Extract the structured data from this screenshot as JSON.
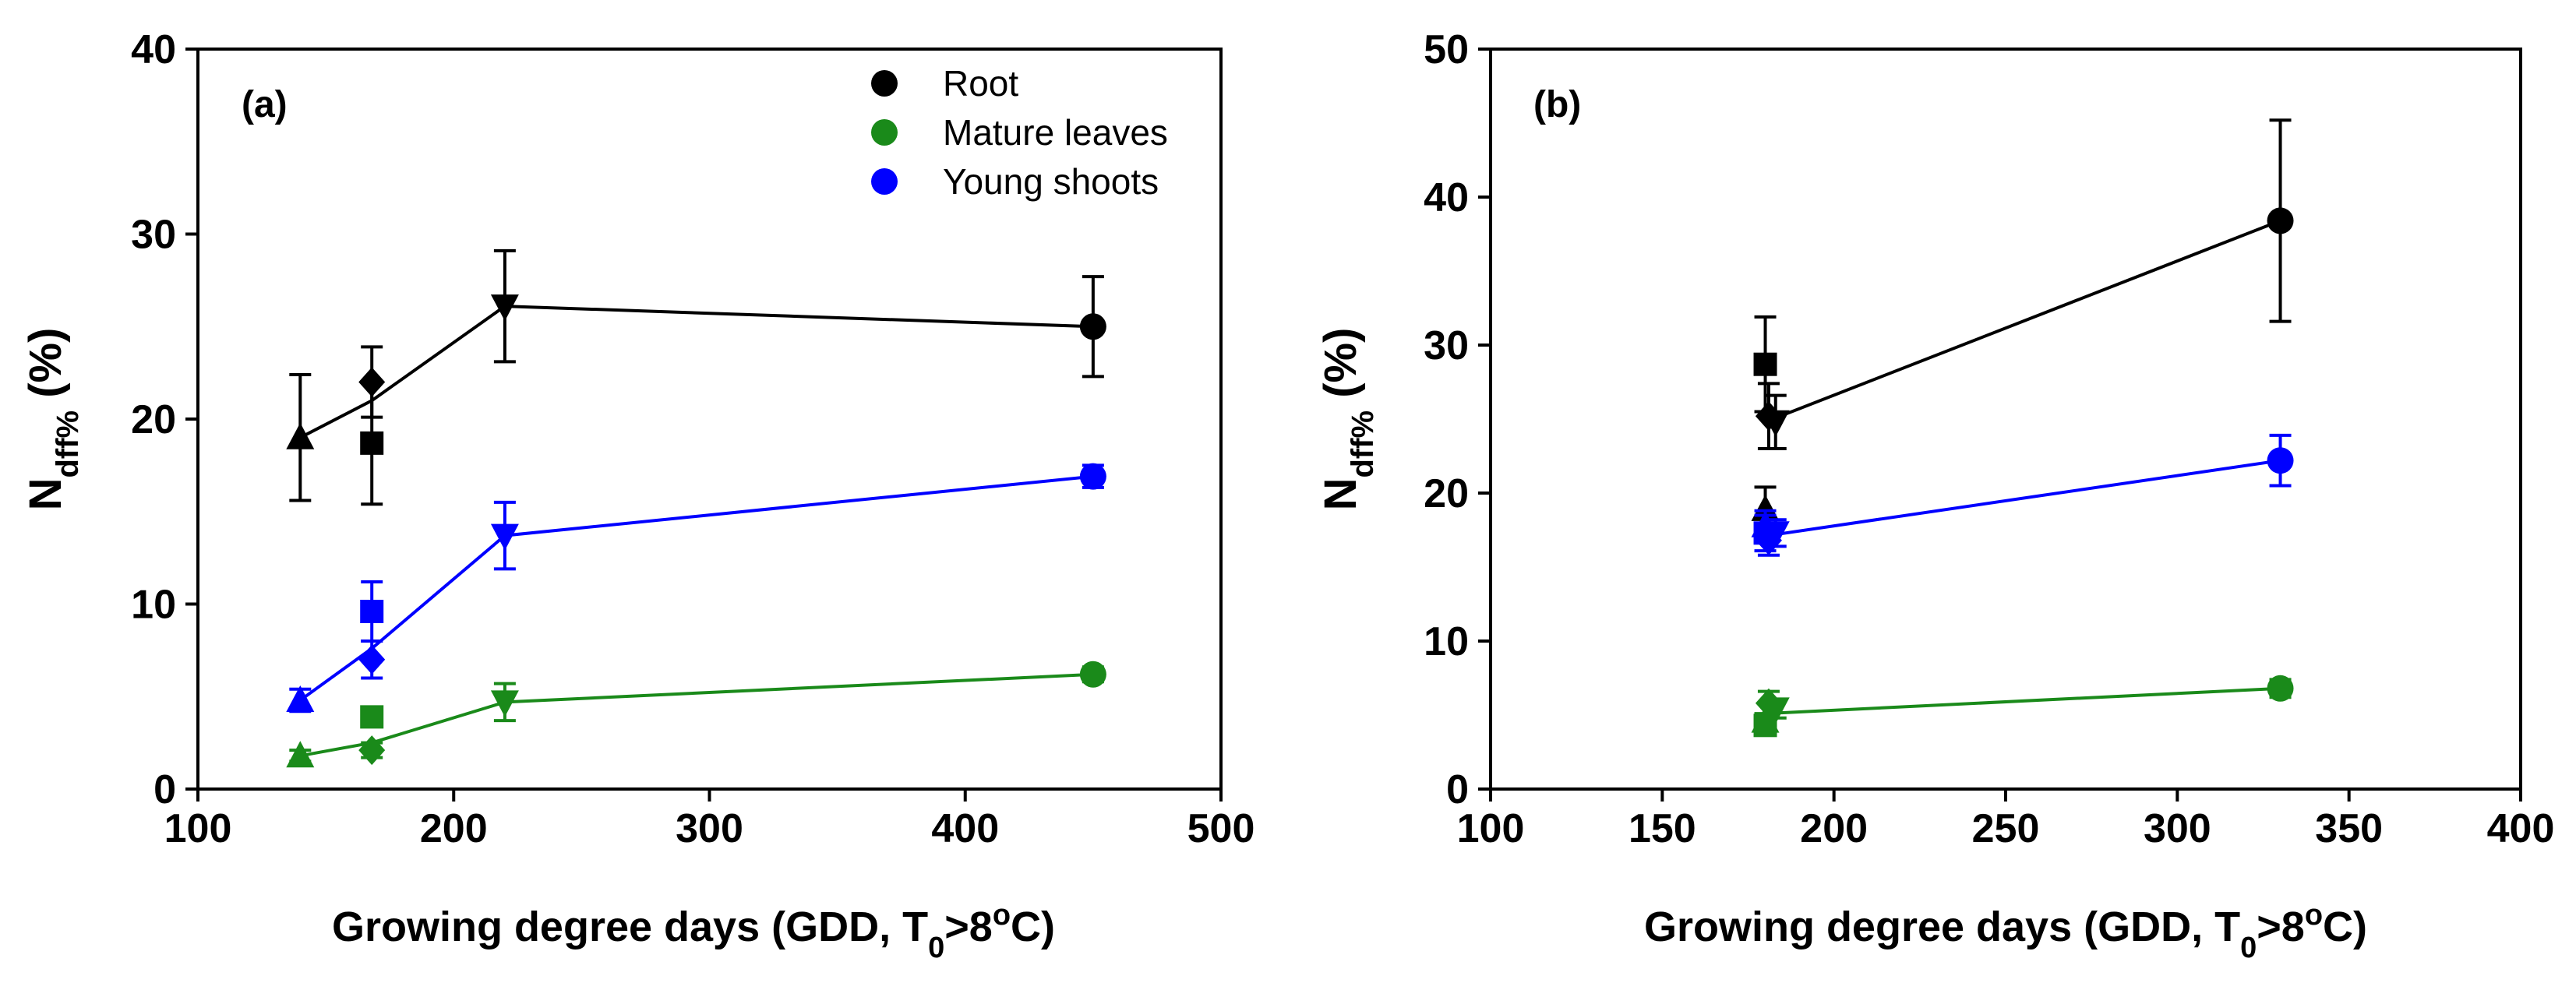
{
  "figure": {
    "x_axis_label": {
      "main": "Growing degree days (GDD, T",
      "sub": "0",
      "after": ">8",
      "sup": "o",
      "tail": "C)"
    },
    "y_axis_label": {
      "main": "N",
      "sub": "dff%",
      "tail": " (%)"
    }
  },
  "legend": {
    "items": [
      {
        "label": "Root",
        "color": "#000000"
      },
      {
        "label": "Mature leaves",
        "color": "#1a8a1a"
      },
      {
        "label": "Young shoots",
        "color": "#0000ff"
      }
    ]
  },
  "chart_data": [
    {
      "type": "scatter",
      "panel_label": "(a)",
      "xlim": [
        100,
        500
      ],
      "ylim": [
        0,
        40
      ],
      "xticks": [
        100,
        200,
        300,
        400,
        500
      ],
      "yticks": [
        0,
        10,
        20,
        30,
        40
      ],
      "series": [
        {
          "name": "Root",
          "color": "#000000",
          "line": [
            [
              140,
              19.0
            ],
            [
              168,
              21.0
            ],
            [
              220,
              26.1
            ],
            [
              450,
              25.0
            ]
          ],
          "points": [
            {
              "x": 140,
              "y": 19.0,
              "err": 3.4,
              "marker": "triangle-up"
            },
            {
              "x": 168,
              "y": 22.0,
              "err": 1.9,
              "marker": "diamond"
            },
            {
              "x": 168,
              "y": 18.7,
              "err": 3.3,
              "marker": "square"
            },
            {
              "x": 220,
              "y": 26.1,
              "err": 3.0,
              "marker": "triangle-down"
            },
            {
              "x": 450,
              "y": 25.0,
              "err": 2.7,
              "marker": "circle"
            }
          ]
        },
        {
          "name": "Mature leaves",
          "color": "#1a8a1a",
          "line": [
            [
              140,
              1.8
            ],
            [
              168,
              2.5
            ],
            [
              220,
              4.7
            ],
            [
              450,
              6.2
            ]
          ],
          "points": [
            {
              "x": 140,
              "y": 1.8,
              "err": 0.3,
              "marker": "triangle-up"
            },
            {
              "x": 168,
              "y": 2.1,
              "err": 0.4,
              "marker": "diamond"
            },
            {
              "x": 168,
              "y": 3.9,
              "err": 0.5,
              "marker": "square"
            },
            {
              "x": 220,
              "y": 4.7,
              "err": 1.0,
              "marker": "triangle-down"
            },
            {
              "x": 450,
              "y": 6.2,
              "err": 0.4,
              "marker": "circle"
            }
          ]
        },
        {
          "name": "Young shoots",
          "color": "#0000ff",
          "line": [
            [
              140,
              4.8
            ],
            [
              168,
              7.6
            ],
            [
              220,
              13.7
            ],
            [
              450,
              16.9
            ]
          ],
          "points": [
            {
              "x": 140,
              "y": 4.8,
              "err": 0.6,
              "marker": "triangle-up"
            },
            {
              "x": 168,
              "y": 7.0,
              "err": 1.0,
              "marker": "diamond"
            },
            {
              "x": 168,
              "y": 9.6,
              "err": 1.6,
              "marker": "square"
            },
            {
              "x": 220,
              "y": 13.7,
              "err": 1.8,
              "marker": "triangle-down"
            },
            {
              "x": 450,
              "y": 16.9,
              "err": 0.6,
              "marker": "circle"
            }
          ]
        }
      ]
    },
    {
      "type": "scatter",
      "panel_label": "(b)",
      "xlim": [
        100,
        400
      ],
      "ylim": [
        0,
        50
      ],
      "xticks": [
        100,
        150,
        200,
        250,
        300,
        350,
        400
      ],
      "yticks": [
        0,
        10,
        20,
        30,
        40,
        50
      ],
      "series": [
        {
          "name": "Root",
          "color": "#000000",
          "line": [
            [
              180,
              24.8
            ],
            [
              330,
              38.4
            ]
          ],
          "points": [
            {
              "x": 180,
              "y": 18.9,
              "err": 1.5,
              "marker": "triangle-up"
            },
            {
              "x": 180,
              "y": 28.7,
              "err": 3.2,
              "marker": "square"
            },
            {
              "x": 181,
              "y": 25.2,
              "err": 2.2,
              "marker": "diamond"
            },
            {
              "x": 183,
              "y": 24.8,
              "err": 1.8,
              "marker": "triangle-down"
            },
            {
              "x": 330,
              "y": 38.4,
              "err": 6.8,
              "marker": "circle"
            }
          ]
        },
        {
          "name": "Mature leaves",
          "color": "#1a8a1a",
          "line": [
            [
              180,
              5.1
            ],
            [
              330,
              6.8
            ]
          ],
          "points": [
            {
              "x": 180,
              "y": 4.3,
              "err": 0.6,
              "marker": "square"
            },
            {
              "x": 180,
              "y": 4.6,
              "err": 0.5,
              "marker": "triangle-up"
            },
            {
              "x": 181,
              "y": 5.8,
              "err": 0.8,
              "marker": "diamond"
            },
            {
              "x": 183,
              "y": 5.4,
              "err": 0.6,
              "marker": "triangle-down"
            },
            {
              "x": 330,
              "y": 6.8,
              "err": 0.6,
              "marker": "circle"
            }
          ]
        },
        {
          "name": "Young shoots",
          "color": "#0000ff",
          "line": [
            [
              180,
              17.1
            ],
            [
              330,
              22.2
            ]
          ],
          "points": [
            {
              "x": 180,
              "y": 17.8,
              "err": 1.0,
              "marker": "triangle-up"
            },
            {
              "x": 180,
              "y": 17.3,
              "err": 1.2,
              "marker": "square"
            },
            {
              "x": 181,
              "y": 16.8,
              "err": 1.0,
              "marker": "diamond"
            },
            {
              "x": 183,
              "y": 17.3,
              "err": 0.9,
              "marker": "triangle-down"
            },
            {
              "x": 330,
              "y": 22.2,
              "err": 1.7,
              "marker": "circle"
            }
          ]
        }
      ]
    }
  ]
}
